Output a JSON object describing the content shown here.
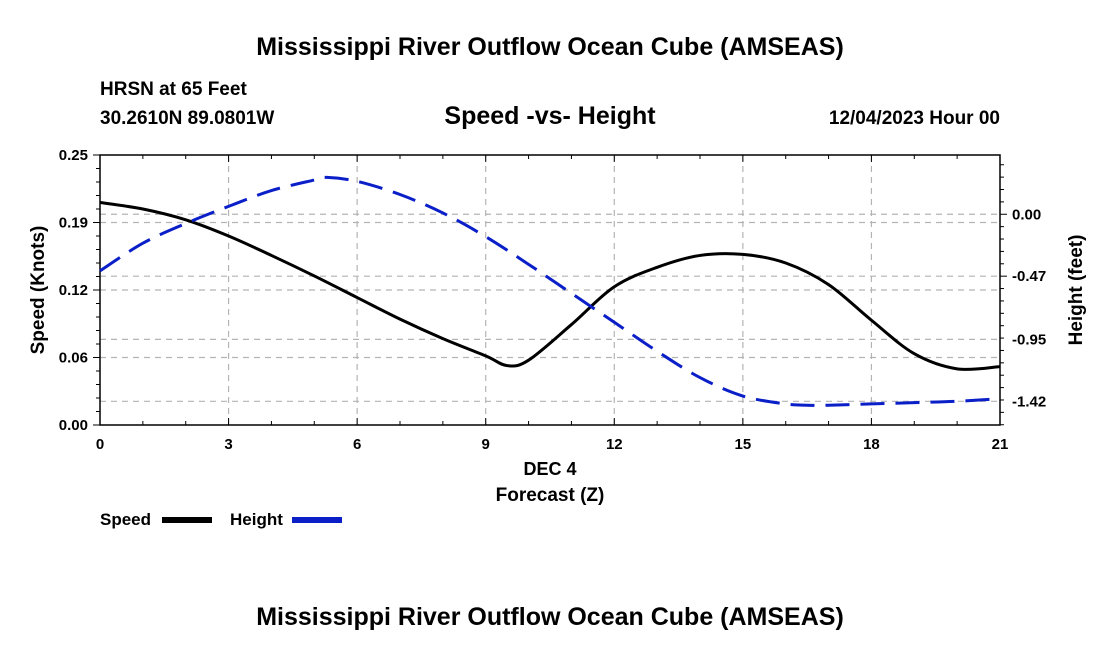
{
  "page": {
    "title_top": "Mississippi River Outflow Ocean Cube (AMSEAS)",
    "title_bottom": "Mississippi River Outflow Ocean Cube (AMSEAS)"
  },
  "info": {
    "station": "HRSN at 65 Feet",
    "coords": "30.2610N  89.0801W",
    "date": "12/04/2023 Hour 00"
  },
  "colors": {
    "speed": "#000000",
    "height": "#0a1fc8",
    "grid": "#b4b4b4"
  },
  "chart_data": {
    "type": "line",
    "title": "Speed -vs- Height",
    "xlabel": "Forecast (Z)",
    "x_sublabel": "DEC 4",
    "ylabel": "Speed (Knots)",
    "y2label": "Height (feet)",
    "xlim": [
      0,
      21
    ],
    "ylim": [
      0,
      0.25
    ],
    "y2lim": [
      -1.6,
      0.45
    ],
    "x_ticks": [
      0,
      3,
      6,
      9,
      12,
      15,
      18,
      21
    ],
    "x_tick_labels": [
      "0",
      "3",
      "6",
      "9",
      "12",
      "15",
      "18",
      "21"
    ],
    "y_ticks": [
      0,
      0.0625,
      0.125,
      0.1875,
      0.25
    ],
    "y_tick_labels": [
      "0.00",
      "0.06",
      "0.12",
      "0.19",
      "0.25"
    ],
    "y2_ticks": [
      0.0,
      -0.47,
      -0.95,
      -1.42
    ],
    "y2_tick_labels": [
      "0.00",
      "-0.47",
      "-0.95",
      "-1.42"
    ],
    "grid": true,
    "legend_position": "bottom-left",
    "series": [
      {
        "name": "Speed",
        "axis": "left",
        "style": "solid",
        "x": [
          0,
          1,
          2,
          3,
          4,
          5,
          6,
          7,
          8,
          9,
          9.5,
          10,
          11,
          12,
          13,
          14,
          15,
          16,
          17,
          18,
          19,
          20,
          21
        ],
        "values": [
          0.206,
          0.2,
          0.19,
          0.175,
          0.157,
          0.138,
          0.118,
          0.098,
          0.08,
          0.064,
          0.055,
          0.06,
          0.093,
          0.128,
          0.146,
          0.157,
          0.158,
          0.15,
          0.13,
          0.097,
          0.066,
          0.052,
          0.054
        ]
      },
      {
        "name": "Height",
        "axis": "right",
        "style": "dashed",
        "x": [
          0,
          1,
          2,
          3,
          4,
          5,
          5.3,
          6,
          7,
          8,
          9,
          10,
          11,
          12,
          13,
          14,
          15,
          16,
          16.5,
          17,
          18,
          19,
          20,
          21
        ],
        "values": [
          -0.43,
          -0.22,
          -0.07,
          0.06,
          0.18,
          0.26,
          0.28,
          0.25,
          0.15,
          0.01,
          -0.17,
          -0.38,
          -0.6,
          -0.82,
          -1.04,
          -1.24,
          -1.38,
          -1.44,
          -1.45,
          -1.45,
          -1.44,
          -1.43,
          -1.42,
          -1.4
        ]
      }
    ]
  }
}
